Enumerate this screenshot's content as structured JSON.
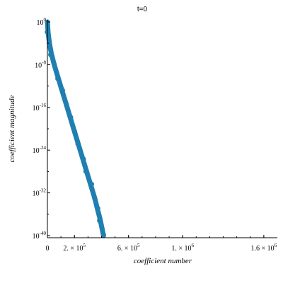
{
  "chart_data": {
    "type": "scatter",
    "title": "t=0",
    "xlabel": "coefficient number",
    "ylabel": "coefficient magnitude",
    "xlim": [
      0,
      1700000
    ],
    "ylim_exponent": [
      -41,
      0.5
    ],
    "y_scale": "log",
    "grid": false,
    "x_ticks": [
      {
        "value": 0,
        "label": "0"
      },
      {
        "value": 200000,
        "mantissa": "2. × 10",
        "exp": "5"
      },
      {
        "value": 600000,
        "mantissa": "6. × 10",
        "exp": "5"
      },
      {
        "value": 1000000,
        "mantissa": "1. × 10",
        "exp": "6"
      },
      {
        "value": 1600000,
        "mantissa": "1.6 × 10",
        "exp": "6"
      }
    ],
    "y_ticks": [
      {
        "exp_value": 0,
        "base": "10",
        "exp": "0"
      },
      {
        "exp_value": -8,
        "base": "10",
        "exp": "-8"
      },
      {
        "exp_value": -16,
        "base": "10",
        "exp": "-16"
      },
      {
        "exp_value": -24,
        "base": "10",
        "exp": "-24"
      },
      {
        "exp_value": -32,
        "base": "10",
        "exp": "-32"
      },
      {
        "exp_value": -40,
        "base": "10",
        "exp": "-40"
      }
    ],
    "series": [
      {
        "color": "#1f7fb0",
        "points_x": [
          0,
          5000,
          15000,
          30000,
          50000,
          80000,
          110000,
          140000,
          170000,
          200000,
          230000,
          260000,
          290000,
          320000,
          350000,
          370000,
          390000,
          405000,
          415000
        ],
        "points_log10_y": [
          0,
          -2,
          -4,
          -6,
          -8,
          -10.5,
          -13,
          -15.5,
          -18,
          -20.5,
          -23,
          -25.5,
          -28,
          -30.5,
          -33,
          -35,
          -37,
          -38.8,
          -40
        ]
      }
    ]
  }
}
